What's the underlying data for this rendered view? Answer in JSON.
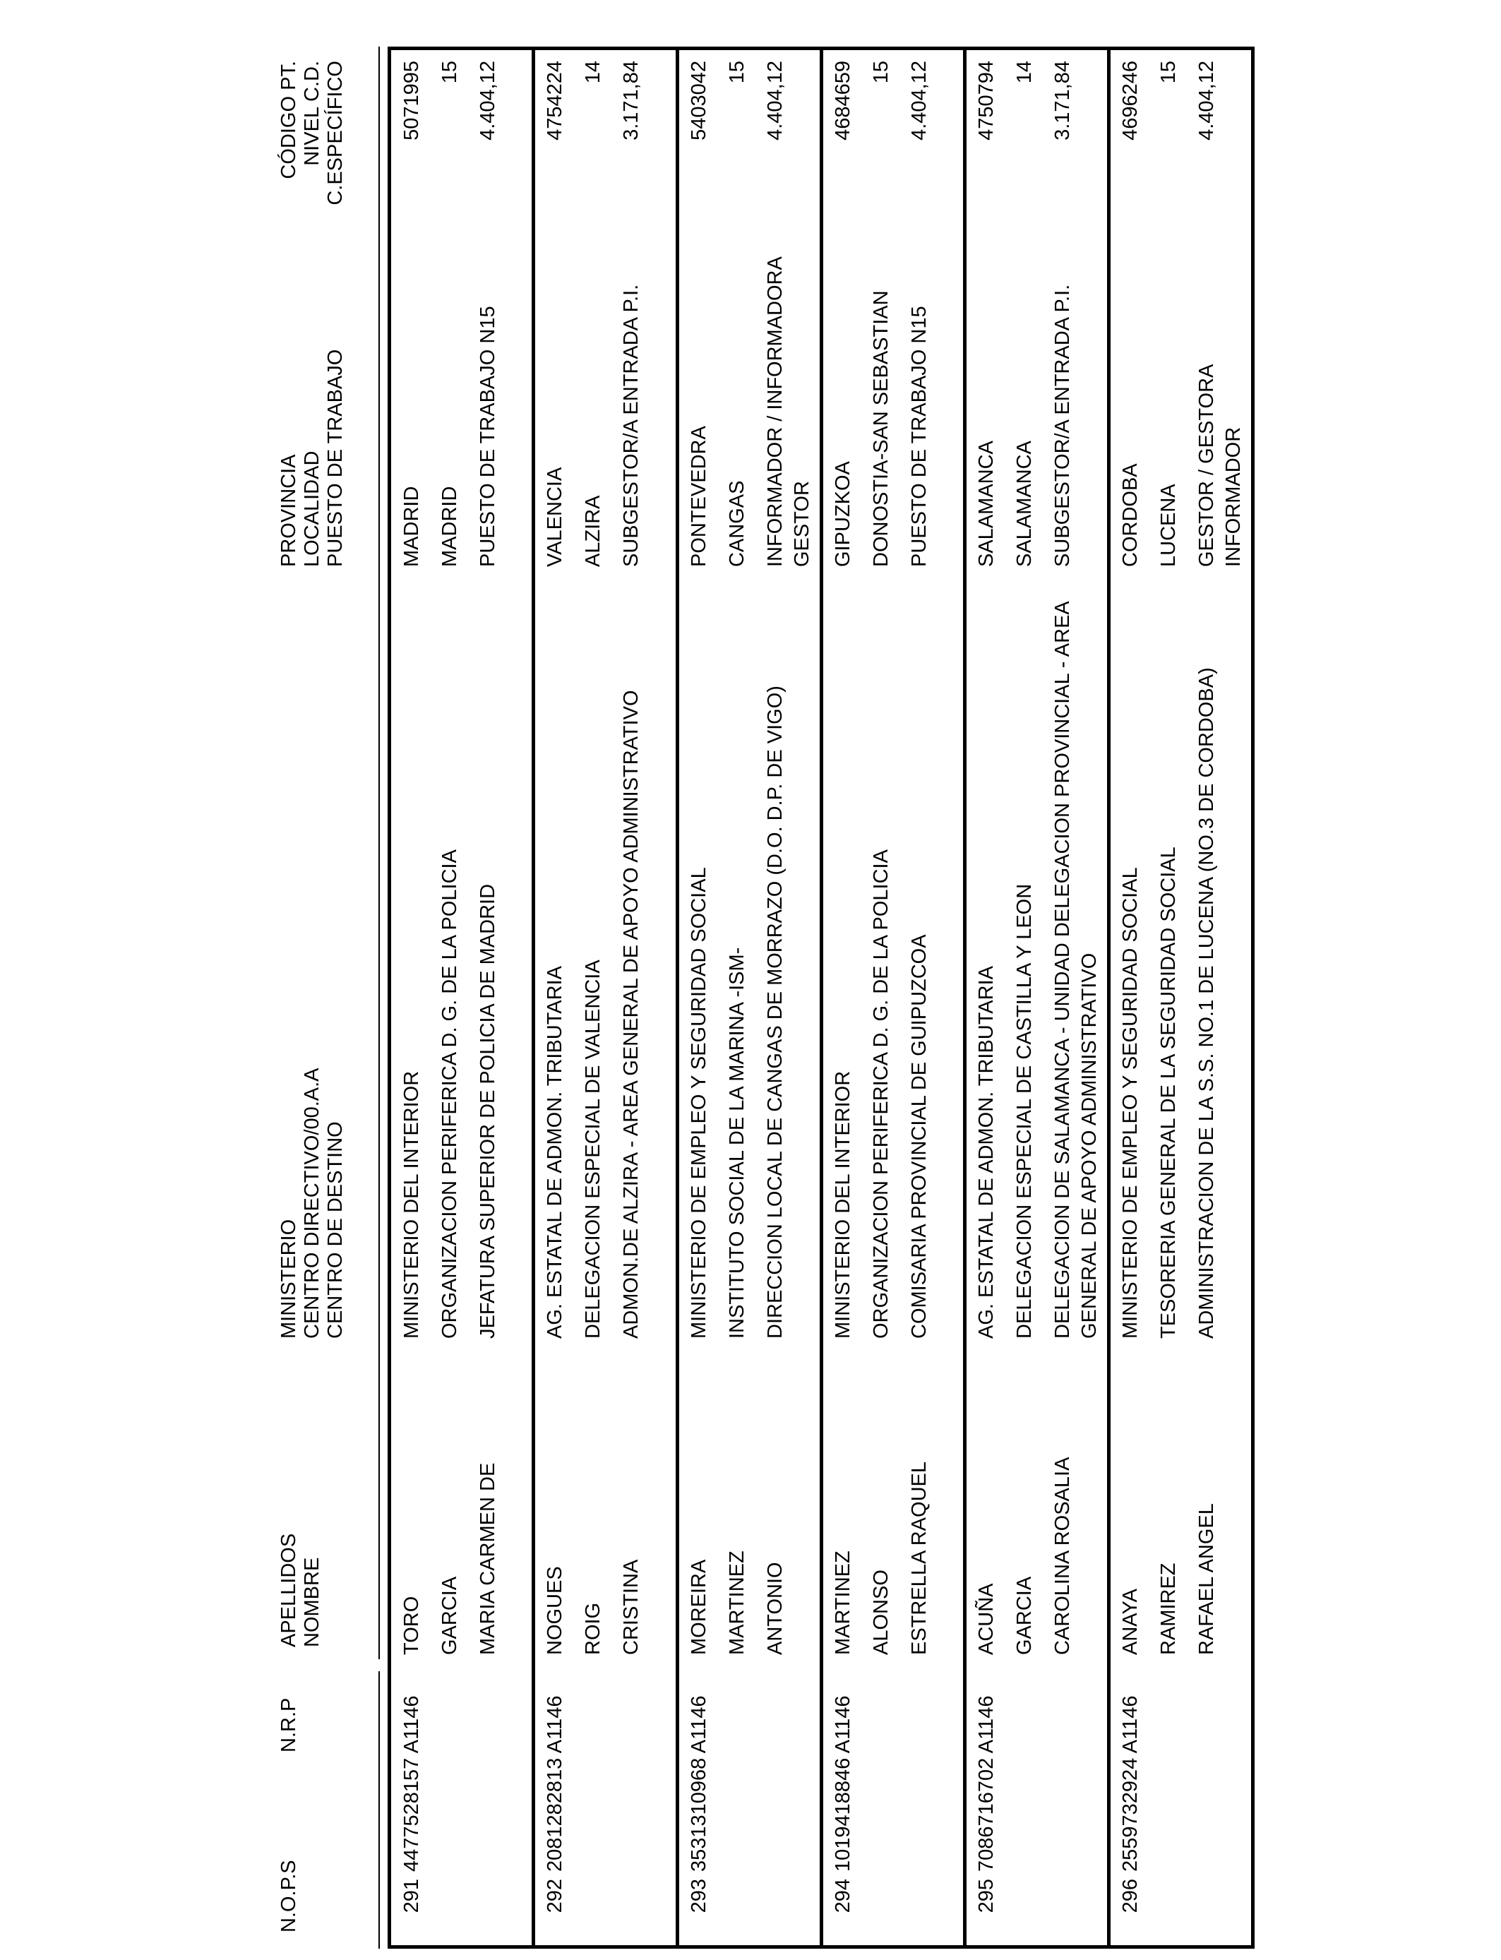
{
  "colors": {
    "ink": "#000000",
    "paper": "#ffffff"
  },
  "headers": {
    "nops": "N.O.P.S",
    "nrp": "N.R.P",
    "apellidos": [
      "APELLIDOS",
      "NOMBRE"
    ],
    "ministerio": [
      "MINISTERIO",
      "CENTRO DIRECTIVO/00.A.A",
      "CENTRO DE DESTINO"
    ],
    "provincia": [
      "PROVINCIA",
      "LOCALIDAD",
      "PUESTO DE TRABAJO"
    ],
    "codigo": [
      "CÓDIGO PT.",
      "NIVEL C.D.",
      "C.ESPECÍFICO"
    ]
  },
  "records": [
    {
      "nops": "291",
      "nrp": "4477528157 A1146",
      "apellidos": [
        [
          "TORO"
        ],
        [
          "GARCIA"
        ],
        [
          "MARIA CARMEN DE"
        ]
      ],
      "ministerio": [
        [
          "MINISTERIO DEL INTERIOR"
        ],
        [
          "ORGANIZACION PERIFERICA D. G. DE LA POLICIA"
        ],
        [
          "JEFATURA SUPERIOR DE POLICIA DE MADRID"
        ]
      ],
      "provincia": [
        [
          "MADRID"
        ],
        [
          "MADRID"
        ],
        [
          "PUESTO DE TRABAJO N15"
        ]
      ],
      "codigo": [
        [
          "5071995"
        ],
        [
          "15"
        ],
        [
          "4.404,12"
        ]
      ]
    },
    {
      "nops": "292",
      "nrp": "2081282813 A1146",
      "apellidos": [
        [
          "NOGUES"
        ],
        [
          "ROIG"
        ],
        [
          "CRISTINA"
        ]
      ],
      "ministerio": [
        [
          "AG. ESTATAL DE ADMON. TRIBUTARIA"
        ],
        [
          "DELEGACION ESPECIAL DE VALENCIA"
        ],
        [
          "ADMON.DE ALZIRA - AREA GENERAL DE APOYO ADMINISTRATIVO"
        ]
      ],
      "provincia": [
        [
          "VALENCIA"
        ],
        [
          "ALZIRA"
        ],
        [
          "SUBGESTOR/A ENTRADA P.I."
        ]
      ],
      "codigo": [
        [
          "4754224"
        ],
        [
          "14"
        ],
        [
          "3.171,84"
        ]
      ]
    },
    {
      "nops": "293",
      "nrp": "3531310968 A1146",
      "apellidos": [
        [
          "MOREIRA"
        ],
        [
          "MARTINEZ"
        ],
        [
          "ANTONIO"
        ]
      ],
      "ministerio": [
        [
          "MINISTERIO DE EMPLEO Y SEGURIDAD SOCIAL"
        ],
        [
          "INSTITUTO SOCIAL DE LA MARINA -ISM-"
        ],
        [
          "DIRECCION LOCAL DE CANGAS DE MORRAZO (D.O. D.P. DE VIGO)"
        ]
      ],
      "provincia": [
        [
          "PONTEVEDRA"
        ],
        [
          "CANGAS"
        ],
        [
          "INFORMADOR / INFORMADORA",
          "GESTOR"
        ]
      ],
      "codigo": [
        [
          "5403042"
        ],
        [
          "15"
        ],
        [
          "4.404,12"
        ]
      ]
    },
    {
      "nops": "294",
      "nrp": "1019418846 A1146",
      "apellidos": [
        [
          "MARTINEZ"
        ],
        [
          "ALONSO"
        ],
        [
          "ESTRELLA RAQUEL"
        ]
      ],
      "ministerio": [
        [
          "MINISTERIO DEL INTERIOR"
        ],
        [
          "ORGANIZACION PERIFERICA D. G. DE LA POLICIA"
        ],
        [
          "COMISARIA PROVINCIAL DE GUIPUZCOA"
        ]
      ],
      "provincia": [
        [
          "GIPUZKOA"
        ],
        [
          "DONOSTIA-SAN SEBASTIAN"
        ],
        [
          "PUESTO DE TRABAJO N15"
        ]
      ],
      "codigo": [
        [
          "4684659"
        ],
        [
          "15"
        ],
        [
          "4.404,12"
        ]
      ]
    },
    {
      "nops": "295",
      "nrp": "7086716702 A1146",
      "apellidos": [
        [
          "ACUÑA"
        ],
        [
          "GARCIA"
        ],
        [
          "CAROLINA ROSALIA"
        ]
      ],
      "ministerio": [
        [
          "AG. ESTATAL DE ADMON. TRIBUTARIA"
        ],
        [
          "DELEGACION ESPECIAL DE CASTILLA Y LEON"
        ],
        [
          "DELEGACION DE SALAMANCA - UNIDAD DELEGACION PROVINCIAL - AREA",
          "GENERAL DE APOYO ADMINISTRATIVO"
        ]
      ],
      "provincia": [
        [
          "SALAMANCA"
        ],
        [
          "SALAMANCA"
        ],
        [
          "SUBGESTOR/A ENTRADA P.I."
        ]
      ],
      "codigo": [
        [
          "4750794"
        ],
        [
          "14"
        ],
        [
          "3.171,84"
        ]
      ]
    },
    {
      "nops": "296",
      "nrp": "2559732924 A1146",
      "apellidos": [
        [
          "ANAYA"
        ],
        [
          "RAMIREZ"
        ],
        [
          "RAFAEL ANGEL"
        ]
      ],
      "ministerio": [
        [
          "MINISTERIO DE EMPLEO Y SEGURIDAD SOCIAL"
        ],
        [
          "TESORERIA GENERAL DE LA SEGURIDAD SOCIAL"
        ],
        [
          "ADMINISTRACION DE LA S.S. NO.1 DE LUCENA (NO.3 DE CORDOBA)"
        ]
      ],
      "provincia": [
        [
          "CORDOBA"
        ],
        [
          "LUCENA"
        ],
        [
          "GESTOR / GESTORA",
          "INFORMADOR"
        ]
      ],
      "codigo": [
        [
          "4696246"
        ],
        [
          "15"
        ],
        [
          "4.404,12"
        ]
      ]
    }
  ]
}
